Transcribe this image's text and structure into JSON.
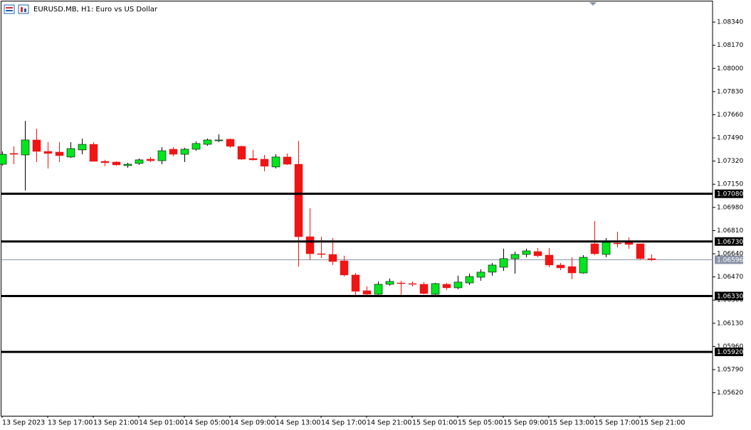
{
  "chart_data": {
    "type": "candlestick",
    "title": "EURUSD.MB, H1:  Euro vs US Dollar",
    "categories": [
      "13 Sep 2023",
      null,
      null,
      null,
      "13 Sep 17:00",
      null,
      null,
      null,
      "13 Sep 21:00",
      null,
      null,
      null,
      "14 Sep 01:00",
      null,
      null,
      null,
      "14 Sep 05:00",
      null,
      null,
      null,
      "14 Sep 09:00",
      null,
      null,
      null,
      "14 Sep 13:00",
      null,
      null,
      null,
      "14 Sep 17:00",
      null,
      null,
      null,
      "14 Sep 21:00",
      null,
      null,
      null,
      "15 Sep 01:00",
      null,
      null,
      null,
      "15 Sep 05:00",
      null,
      null,
      null,
      "15 Sep 09:00",
      null,
      null,
      null,
      "15 Sep 13:00",
      null,
      null,
      null,
      "15 Sep 17:00",
      null,
      null,
      null,
      "15 Sep 21:00",
      null
    ],
    "open": [
      1.07297,
      1.07376,
      1.07365,
      1.07475,
      1.07391,
      1.07386,
      1.0735,
      1.07402,
      1.07443,
      1.07318,
      1.07313,
      1.07287,
      1.07303,
      1.07334,
      1.07323,
      1.07407,
      1.0737,
      1.07407,
      1.07443,
      1.07469,
      1.0748,
      1.07428,
      1.07339,
      1.07334,
      1.07277,
      1.0735,
      1.07297,
      1.06765,
      1.0664,
      1.06635,
      1.06588,
      1.06484,
      1.06369,
      1.06343,
      1.06416,
      1.06426,
      1.06421,
      1.06416,
      1.06343,
      1.06416,
      1.0639,
      1.06426,
      1.06468,
      1.06505,
      1.06541,
      1.06604,
      1.06635,
      1.06656,
      1.0663,
      1.06557,
      1.06546,
      1.06499,
      1.06713,
      1.06635,
      1.06718,
      1.06724,
      1.06713,
      1.06604
    ],
    "high": [
      1.07391,
      1.07428,
      1.07615,
      1.07558,
      1.07459,
      1.07459,
      1.07459,
      1.07485,
      1.07459,
      1.07329,
      1.07318,
      1.07308,
      1.07339,
      1.0735,
      1.07422,
      1.07422,
      1.07417,
      1.07464,
      1.07485,
      1.07516,
      1.07485,
      1.07433,
      1.07402,
      1.07365,
      1.0737,
      1.07376,
      1.07469,
      1.06974,
      1.06765,
      1.06755,
      1.06625,
      1.06499,
      1.064,
      1.06437,
      1.06458,
      1.06442,
      1.06437,
      1.06432,
      1.06426,
      1.06426,
      1.06479,
      1.06494,
      1.06526,
      1.06572,
      1.06677,
      1.06656,
      1.06677,
      1.06682,
      1.06682,
      1.06572,
      1.06614,
      1.0663,
      1.0688,
      1.06755,
      1.06802,
      1.0676,
      1.06713,
      1.06635
    ],
    "low": [
      1.07287,
      1.07297,
      1.07104,
      1.07313,
      1.07266,
      1.07313,
      1.07344,
      1.0737,
      1.07318,
      1.07282,
      1.07287,
      1.07271,
      1.07292,
      1.07313,
      1.07297,
      1.07355,
      1.07313,
      1.07396,
      1.07433,
      1.07459,
      1.07417,
      1.07329,
      1.07323,
      1.07245,
      1.07266,
      1.07292,
      1.06546,
      1.06593,
      1.06609,
      1.06557,
      1.06473,
      1.06322,
      1.06338,
      1.06338,
      1.06406,
      1.06338,
      1.064,
      1.06343,
      1.06333,
      1.06374,
      1.0638,
      1.06411,
      1.06442,
      1.06479,
      1.06515,
      1.06494,
      1.06614,
      1.06614,
      1.06541,
      1.0652,
      1.06453,
      1.06494,
      1.0663,
      1.06614,
      1.06687,
      1.06677,
      1.06599,
      1.06588
    ],
    "close": [
      1.0737,
      1.0737,
      1.07475,
      1.07391,
      1.07376,
      1.0736,
      1.07412,
      1.07443,
      1.07318,
      1.07308,
      1.07292,
      1.07297,
      1.07329,
      1.07323,
      1.07396,
      1.0737,
      1.07407,
      1.07449,
      1.07475,
      1.07475,
      1.07428,
      1.07334,
      1.07329,
      1.07282,
      1.0735,
      1.07297,
      1.06765,
      1.0664,
      1.06635,
      1.06583,
      1.06484,
      1.06364,
      1.06343,
      1.06416,
      1.06437,
      1.06421,
      1.06416,
      1.06348,
      1.06421,
      1.0639,
      1.06432,
      1.06473,
      1.06505,
      1.06557,
      1.06604,
      1.06635,
      1.06661,
      1.06625,
      1.06557,
      1.06536,
      1.06499,
      1.06614,
      1.0664,
      1.06724,
      1.06713,
      1.06708,
      1.06604,
      1.06596
    ],
    "up_color": "#00e61e",
    "down_color": "#f01414",
    "ylim": [
      1.05451,
      1.08502
    ],
    "yticks": [
      {
        "value": 1.0834,
        "label": "1.08340"
      },
      {
        "value": 1.0817,
        "label": "1.08170"
      },
      {
        "value": 1.08,
        "label": "1.08000"
      },
      {
        "value": 1.0783,
        "label": "1.07830"
      },
      {
        "value": 1.0766,
        "label": "1.07660"
      },
      {
        "value": 1.0749,
        "label": "1.07490"
      },
      {
        "value": 1.0732,
        "label": "1.07320"
      },
      {
        "value": 1.0715,
        "label": "1.07150"
      },
      {
        "value": 1.0698,
        "label": "1.06980"
      },
      {
        "value": 1.0681,
        "label": "1.06810"
      },
      {
        "value": 1.0664,
        "label": "1.06640"
      },
      {
        "value": 1.0647,
        "label": "1.06470"
      },
      {
        "value": 1.063,
        "label": "1.06300"
      },
      {
        "value": 1.0613,
        "label": "1.06130"
      },
      {
        "value": 1.0596,
        "label": "1.05960"
      },
      {
        "value": 1.0579,
        "label": "1.05790"
      },
      {
        "value": 1.0562,
        "label": "1.05620"
      }
    ],
    "levels": [
      {
        "value": 1.0708,
        "label": "1.07080"
      },
      {
        "value": 1.0673,
        "label": "1.06730"
      },
      {
        "value": 1.0633,
        "label": "1.06330"
      },
      {
        "value": 1.0592,
        "label": "1.05920"
      }
    ],
    "current_price": {
      "value": 1.06596,
      "label": "1.06596"
    }
  }
}
